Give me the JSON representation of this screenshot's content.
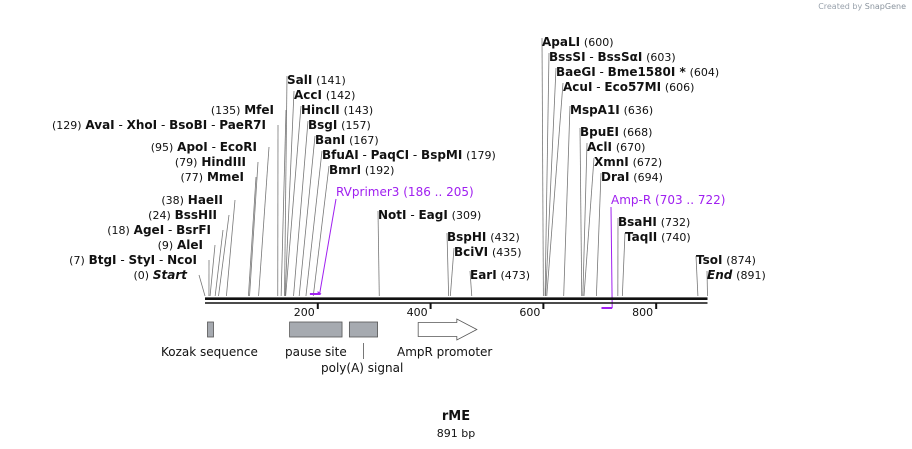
{
  "watermark": {
    "prefix": "Created by",
    "brand": "SnapGene"
  },
  "plasmid": {
    "name": "rME",
    "length_label": "891 bp",
    "length": 891
  },
  "axis": {
    "ticks": [
      {
        "label": "200",
        "value": 200
      },
      {
        "label": "400",
        "value": 400
      },
      {
        "label": "600",
        "value": 600
      },
      {
        "label": "800",
        "value": 800
      }
    ]
  },
  "sites_left": [
    {
      "names": [
        "Start"
      ],
      "pos": 0,
      "pos_label": "(0)",
      "italic": true
    },
    {
      "names": [
        "BtgI",
        "StyI",
        "NcoI"
      ],
      "pos": 7,
      "pos_label": "(7)"
    },
    {
      "names": [
        "AleI"
      ],
      "pos": 9,
      "pos_label": "(9)"
    },
    {
      "names": [
        "AgeI",
        "BsrFI"
      ],
      "pos": 18,
      "pos_label": "(18)"
    },
    {
      "names": [
        "BssHII"
      ],
      "pos": 24,
      "pos_label": "(24)"
    },
    {
      "names": [
        "HaeII"
      ],
      "pos": 38,
      "pos_label": "(38)"
    },
    {
      "names": [
        "MmeI"
      ],
      "pos": 77,
      "pos_label": "(77)"
    },
    {
      "names": [
        "HindIII"
      ],
      "pos": 79,
      "pos_label": "(79)"
    },
    {
      "names": [
        "ApoI",
        "EcoRI"
      ],
      "pos": 95,
      "pos_label": "(95)"
    },
    {
      "names": [
        "AvaI",
        "XhoI",
        "BsoBI",
        "PaeR7I"
      ],
      "pos": 129,
      "pos_label": "(129)"
    },
    {
      "names": [
        "MfeI"
      ],
      "pos": 135,
      "pos_label": "(135)"
    }
  ],
  "sites_right": [
    {
      "names": [
        "SalI"
      ],
      "pos": 141,
      "pos_label": "(141)"
    },
    {
      "names": [
        "AccI"
      ],
      "pos": 142,
      "pos_label": "(142)"
    },
    {
      "names": [
        "HincII"
      ],
      "pos": 143,
      "pos_label": "(143)"
    },
    {
      "names": [
        "BsgI"
      ],
      "pos": 157,
      "pos_label": "(157)"
    },
    {
      "names": [
        "BanI"
      ],
      "pos": 167,
      "pos_label": "(167)"
    },
    {
      "names": [
        "BfuAI",
        "PaqCI",
        "BspMI"
      ],
      "pos": 179,
      "pos_label": "(179)"
    },
    {
      "names": [
        "BmrI"
      ],
      "pos": 192,
      "pos_label": "(192)"
    },
    {
      "names": [
        "NotI",
        "EagI"
      ],
      "pos": 309,
      "pos_label": "(309)"
    },
    {
      "names": [
        "BspHI"
      ],
      "pos": 432,
      "pos_label": "(432)"
    },
    {
      "names": [
        "BciVI"
      ],
      "pos": 435,
      "pos_label": "(435)"
    },
    {
      "names": [
        "EarI"
      ],
      "pos": 473,
      "pos_label": "(473)"
    },
    {
      "names": [
        "ApaLI"
      ],
      "pos": 600,
      "pos_label": "(600)"
    },
    {
      "names": [
        "BssSI",
        "BssSαI"
      ],
      "pos": 603,
      "pos_label": "(603)"
    },
    {
      "names": [
        "BaeGI",
        "Bme1580I *"
      ],
      "pos": 604,
      "pos_label": "(604)"
    },
    {
      "names": [
        "AcuI",
        "Eco57MI"
      ],
      "pos": 606,
      "pos_label": "(606)"
    },
    {
      "names": [
        "MspA1I"
      ],
      "pos": 636,
      "pos_label": "(636)"
    },
    {
      "names": [
        "BpuEI"
      ],
      "pos": 668,
      "pos_label": "(668)"
    },
    {
      "names": [
        "AclI"
      ],
      "pos": 670,
      "pos_label": "(670)"
    },
    {
      "names": [
        "XmnI"
      ],
      "pos": 672,
      "pos_label": "(672)"
    },
    {
      "names": [
        "DraI"
      ],
      "pos": 694,
      "pos_label": "(694)"
    },
    {
      "names": [
        "BsaHI"
      ],
      "pos": 732,
      "pos_label": "(732)"
    },
    {
      "names": [
        "TaqII"
      ],
      "pos": 740,
      "pos_label": "(740)"
    },
    {
      "names": [
        "TsoI"
      ],
      "pos": 874,
      "pos_label": "(874)"
    },
    {
      "names": [
        "End"
      ],
      "pos": 891,
      "pos_label": "(891)",
      "italic": true
    }
  ],
  "primers": [
    {
      "name": "RVprimer3",
      "range_label": "(186 .. 205)",
      "start": 186,
      "end": 205,
      "strand": "forward",
      "color": "#a020f0"
    },
    {
      "name": "Amp-R",
      "range_label": "(703 .. 722)",
      "start": 703,
      "end": 722,
      "strand": "reverse",
      "color": "#a020f0"
    }
  ],
  "features": [
    {
      "name": "Kozak sequence",
      "start": 2,
      "end": 14,
      "kind": "box",
      "color": "#a6aab0"
    },
    {
      "name": "pause site",
      "start": 150,
      "end": 243,
      "kind": "box",
      "color": "#a6aab0"
    },
    {
      "name": "poly(A) signal",
      "start": 256,
      "end": 306,
      "kind": "box",
      "color": "#a6aab0"
    },
    {
      "name": "AmpR promoter",
      "start": 378,
      "end": 482,
      "kind": "arrow",
      "color": "#ffffff"
    }
  ]
}
